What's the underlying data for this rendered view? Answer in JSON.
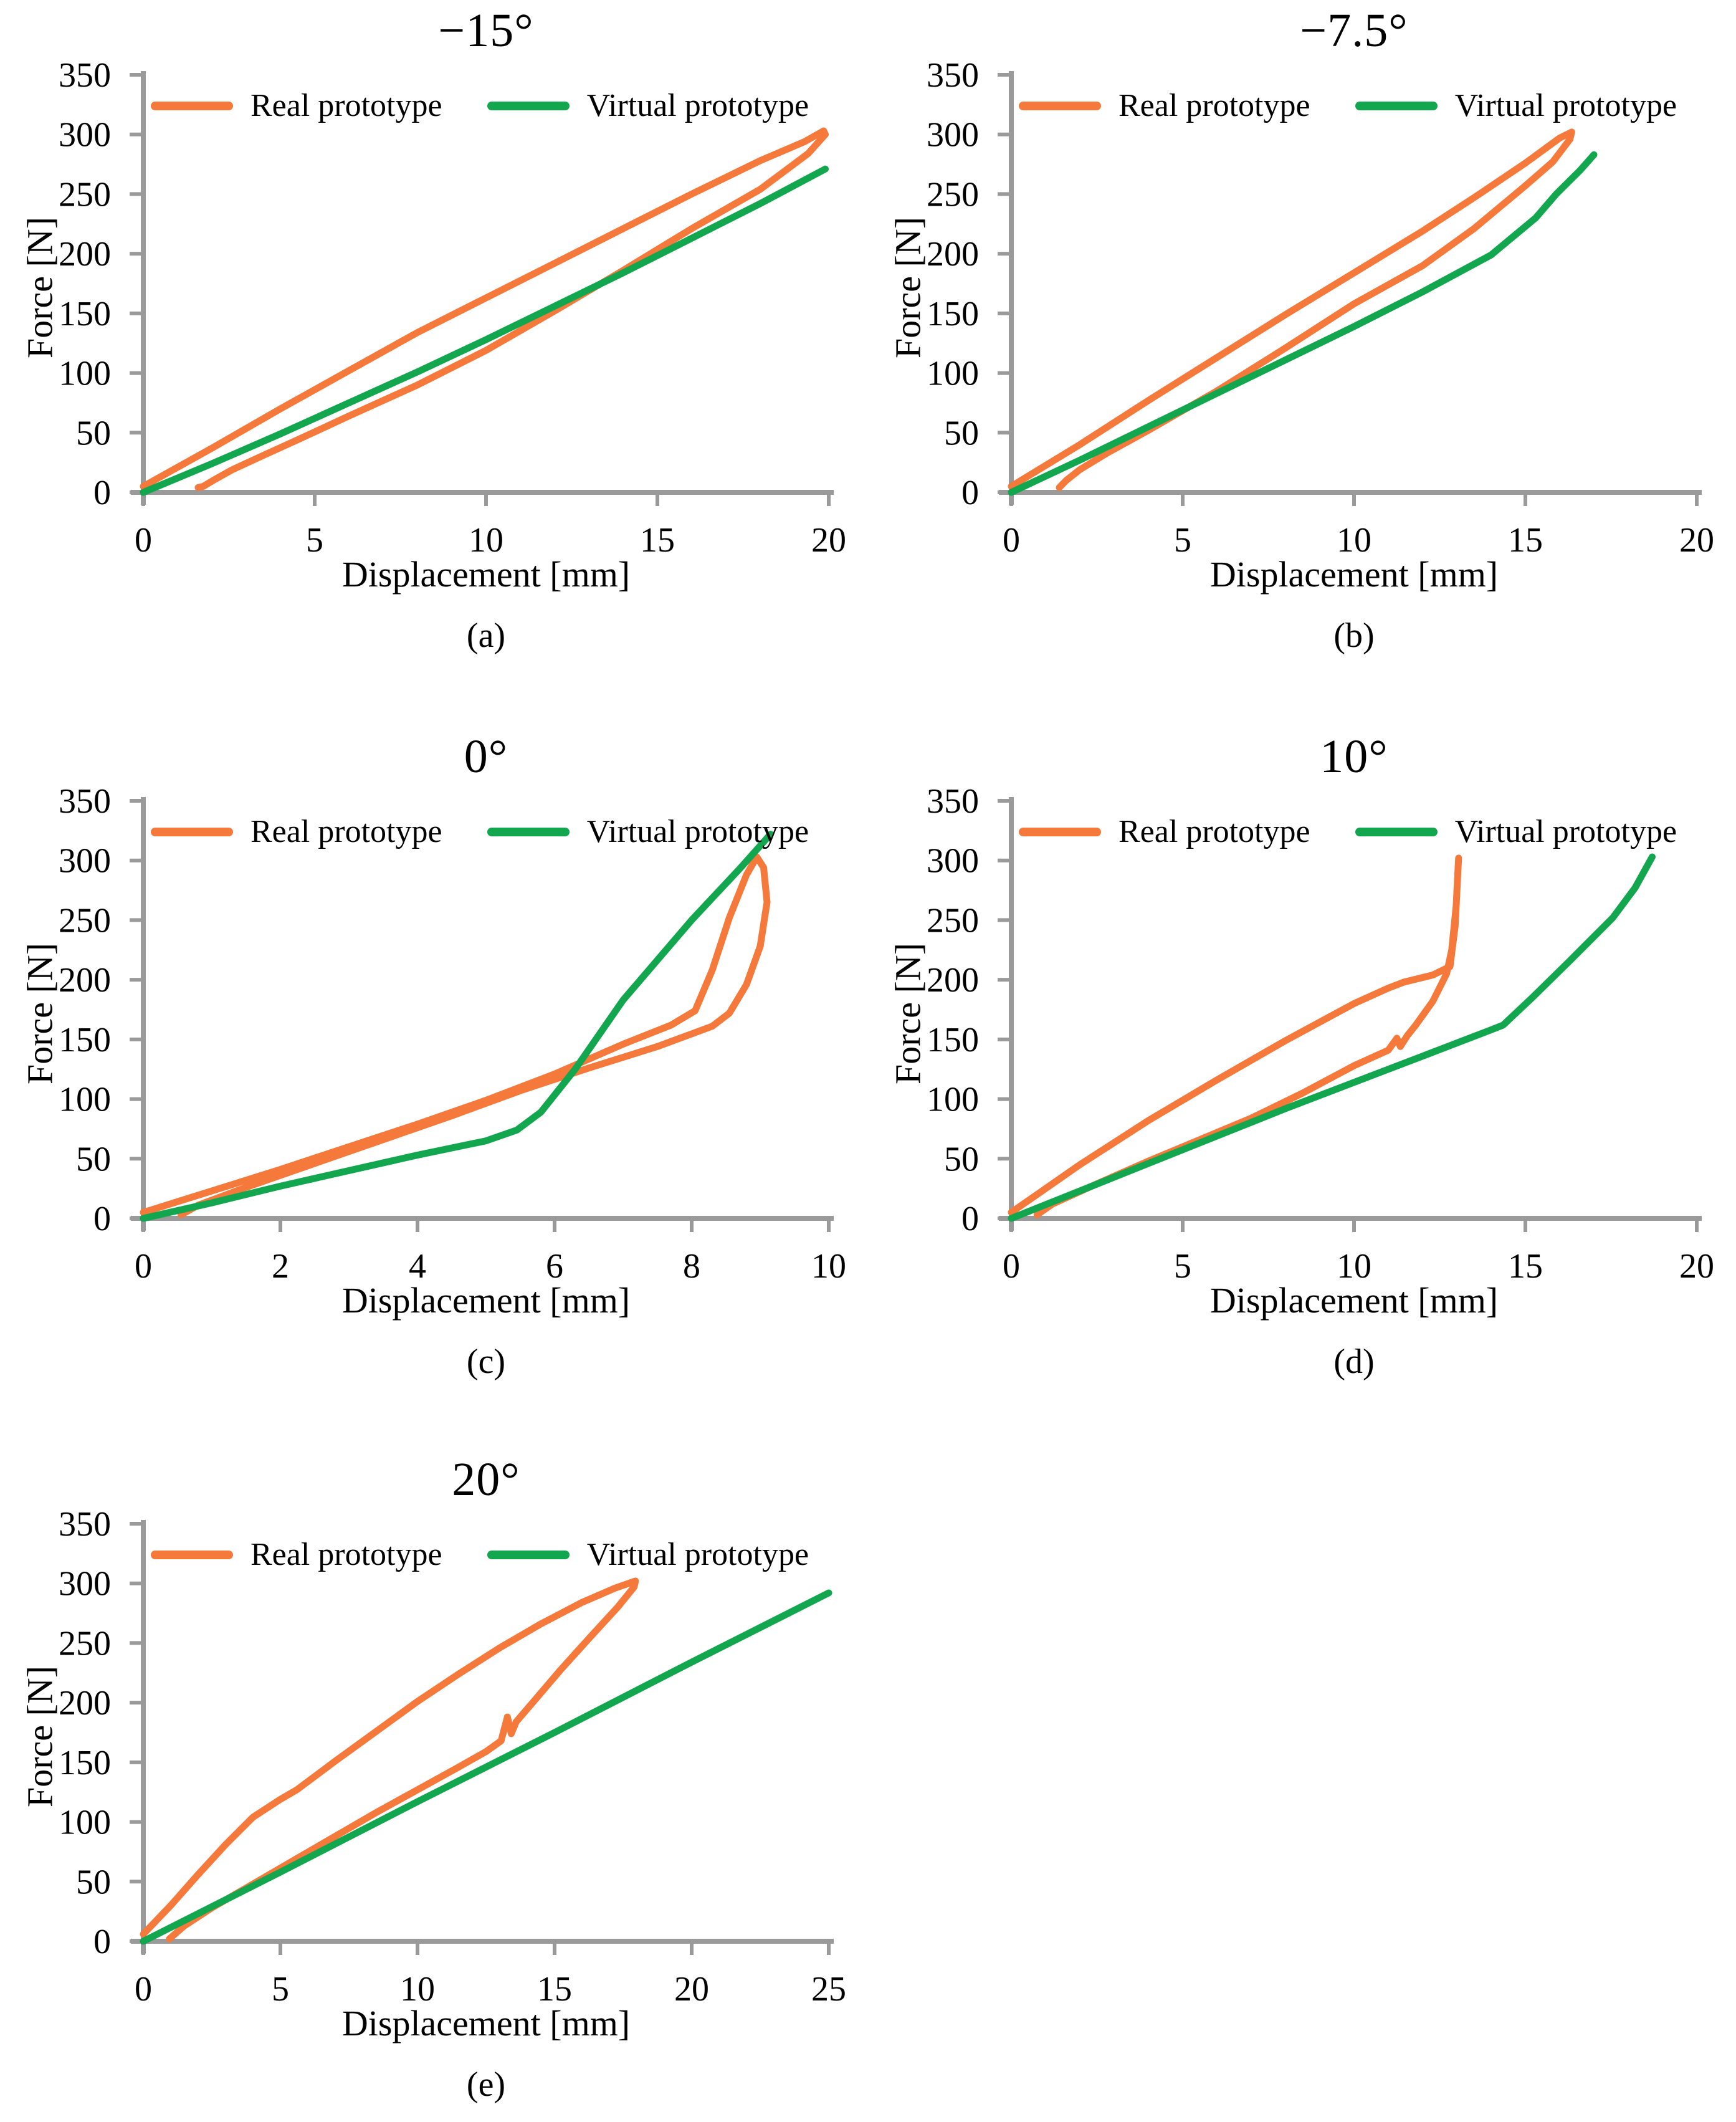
{
  "figure": {
    "background": "#FFFFFF",
    "axis_color": "#9A9A9A",
    "text_color": "#000000",
    "real_color": "#F4793B",
    "virtual_color": "#12A74E"
  },
  "chart_data": [
    {
      "id": "a",
      "type": "line",
      "title": "−15°",
      "caption": "(a)",
      "xlabel": "Displacement [mm]",
      "ylabel": "Force [N]",
      "xlim": [
        0,
        20
      ],
      "ylim": [
        0,
        350
      ],
      "x_ticks": [
        0,
        5,
        10,
        15,
        20
      ],
      "y_ticks": [
        0,
        50,
        100,
        150,
        200,
        250,
        300,
        350
      ],
      "grid": false,
      "legend_position": "top-inside",
      "series": [
        {
          "name": "Real prototype",
          "color": "#F4793B",
          "points": [
            [
              0,
              5
            ],
            [
              2,
              37
            ],
            [
              4,
              70
            ],
            [
              6,
              102
            ],
            [
              8,
              134
            ],
            [
              10,
              163
            ],
            [
              12,
              192
            ],
            [
              14,
              221
            ],
            [
              16,
              250
            ],
            [
              18,
              278
            ],
            [
              19.3,
              294
            ],
            [
              19.85,
              303
            ],
            [
              19.9,
              300
            ],
            [
              19.4,
              284
            ],
            [
              18,
              254
            ],
            [
              16,
              221
            ],
            [
              14,
              186
            ],
            [
              12,
              152
            ],
            [
              10,
              119
            ],
            [
              8,
              90
            ],
            [
              6,
              64
            ],
            [
              4.5,
              44
            ],
            [
              3.5,
              31
            ],
            [
              2.6,
              19
            ],
            [
              2.1,
              11
            ],
            [
              1.75,
              5
            ],
            [
              1.6,
              4
            ]
          ]
        },
        {
          "name": "Virtual prototype",
          "color": "#12A74E",
          "points": [
            [
              0,
              0
            ],
            [
              2,
              24
            ],
            [
              4,
              49
            ],
            [
              6,
              75
            ],
            [
              8,
              101
            ],
            [
              10,
              128
            ],
            [
              12,
              156
            ],
            [
              14,
              184
            ],
            [
              16,
              213
            ],
            [
              18,
              242
            ],
            [
              19.9,
              271
            ]
          ]
        }
      ]
    },
    {
      "id": "b",
      "type": "line",
      "title": "−7.5°",
      "caption": "(b)",
      "xlabel": "Displacement [mm]",
      "ylabel": "Force [N]",
      "xlim": [
        0,
        20
      ],
      "ylim": [
        0,
        350
      ],
      "x_ticks": [
        0,
        5,
        10,
        15,
        20
      ],
      "y_ticks": [
        0,
        50,
        100,
        150,
        200,
        250,
        300,
        350
      ],
      "grid": false,
      "legend_position": "top-inside",
      "series": [
        {
          "name": "Real prototype",
          "color": "#F4793B",
          "points": [
            [
              0,
              5
            ],
            [
              2,
              40
            ],
            [
              4,
              77
            ],
            [
              6,
              113
            ],
            [
              8,
              149
            ],
            [
              10,
              184
            ],
            [
              12,
              219
            ],
            [
              13.5,
              247
            ],
            [
              15,
              276
            ],
            [
              16,
              297
            ],
            [
              16.35,
              302
            ],
            [
              16.3,
              296
            ],
            [
              15.8,
              277
            ],
            [
              15,
              257
            ],
            [
              13.5,
              221
            ],
            [
              12,
              190
            ],
            [
              10,
              158
            ],
            [
              8,
              121
            ],
            [
              6,
              85
            ],
            [
              4,
              52
            ],
            [
              2.8,
              33
            ],
            [
              2,
              19
            ],
            [
              1.6,
              10
            ],
            [
              1.4,
              4
            ]
          ]
        },
        {
          "name": "Virtual prototype",
          "color": "#12A74E",
          "points": [
            [
              0,
              0
            ],
            [
              2,
              27
            ],
            [
              4,
              55
            ],
            [
              6,
              83
            ],
            [
              8,
              111
            ],
            [
              10,
              139
            ],
            [
              12,
              168
            ],
            [
              14,
              199
            ],
            [
              15.3,
              230
            ],
            [
              15.9,
              250
            ],
            [
              16.6,
              270
            ],
            [
              17,
              283
            ]
          ]
        }
      ]
    },
    {
      "id": "c",
      "type": "line",
      "title": "0°",
      "caption": "(c)",
      "xlabel": "Displacement [mm]",
      "ylabel": "Force [N]",
      "xlim": [
        0,
        10
      ],
      "ylim": [
        0,
        350
      ],
      "x_ticks": [
        0,
        2,
        4,
        6,
        8,
        10
      ],
      "y_ticks": [
        0,
        50,
        100,
        150,
        200,
        250,
        300,
        350
      ],
      "grid": false,
      "legend_position": "top-inside",
      "series": [
        {
          "name": "Real prototype",
          "color": "#F4793B",
          "points": [
            [
              0,
              5
            ],
            [
              1,
              23
            ],
            [
              2,
              41
            ],
            [
              3,
              60
            ],
            [
              4,
              79
            ],
            [
              5,
              99
            ],
            [
              6,
              121
            ],
            [
              7,
              146
            ],
            [
              7.7,
              162
            ],
            [
              8.05,
              174
            ],
            [
              8.3,
              208
            ],
            [
              8.55,
              252
            ],
            [
              8.8,
              288
            ],
            [
              8.95,
              303
            ],
            [
              9.05,
              294
            ],
            [
              9.1,
              265
            ],
            [
              9,
              228
            ],
            [
              8.8,
              196
            ],
            [
              8.55,
              172
            ],
            [
              8.3,
              161
            ],
            [
              7.5,
              144
            ],
            [
              6.5,
              126
            ],
            [
              5.5,
              107
            ],
            [
              4.5,
              86
            ],
            [
              3.5,
              66
            ],
            [
              2.5,
              46
            ],
            [
              1.5,
              26
            ],
            [
              0.8,
              11
            ],
            [
              0.55,
              3
            ]
          ]
        },
        {
          "name": "Virtual prototype",
          "color": "#12A74E",
          "points": [
            [
              0,
              0
            ],
            [
              1,
              13
            ],
            [
              2,
              27
            ],
            [
              3,
              40
            ],
            [
              4,
              53
            ],
            [
              5,
              65
            ],
            [
              5.45,
              74
            ],
            [
              5.8,
              89
            ],
            [
              6.3,
              125
            ],
            [
              7,
              183
            ],
            [
              8,
              250
            ],
            [
              8.7,
              293
            ],
            [
              9.15,
              322
            ]
          ]
        }
      ]
    },
    {
      "id": "d",
      "type": "line",
      "title": "10°",
      "caption": "(d)",
      "xlabel": "Displacement [mm]",
      "ylabel": "Force [N]",
      "xlim": [
        0,
        20
      ],
      "ylim": [
        0,
        350
      ],
      "x_ticks": [
        0,
        5,
        10,
        15,
        20
      ],
      "y_ticks": [
        0,
        50,
        100,
        150,
        200,
        250,
        300,
        350
      ],
      "grid": false,
      "legend_position": "top-inside",
      "series": [
        {
          "name": "Real prototype",
          "color": "#F4793B",
          "points": [
            [
              0,
              5
            ],
            [
              2,
              45
            ],
            [
              4,
              82
            ],
            [
              6,
              116
            ],
            [
              8,
              149
            ],
            [
              10,
              180
            ],
            [
              11,
              193
            ],
            [
              11.45,
              198
            ],
            [
              12.3,
              204
            ],
            [
              12.8,
              211
            ],
            [
              12.95,
              245
            ],
            [
              13.05,
              302
            ],
            [
              12.98,
              262
            ],
            [
              12.85,
              225
            ],
            [
              12.7,
              205
            ],
            [
              12.3,
              182
            ],
            [
              11.8,
              162
            ],
            [
              11.55,
              153
            ],
            [
              11.35,
              144
            ],
            [
              11.25,
              151
            ],
            [
              11,
              141
            ],
            [
              10,
              128
            ],
            [
              8.5,
              105
            ],
            [
              7,
              84
            ],
            [
              5.5,
              66
            ],
            [
              4,
              48
            ],
            [
              2.5,
              29
            ],
            [
              1.2,
              12
            ],
            [
              0.75,
              3
            ]
          ]
        },
        {
          "name": "Virtual prototype",
          "color": "#12A74E",
          "points": [
            [
              0,
              0
            ],
            [
              2,
              23
            ],
            [
              4,
              46
            ],
            [
              6,
              69
            ],
            [
              8,
              92
            ],
            [
              10,
              114
            ],
            [
              12,
              136
            ],
            [
              14,
              158
            ],
            [
              14.35,
              162
            ],
            [
              15.2,
              185
            ],
            [
              16.3,
              216
            ],
            [
              17.55,
              252
            ],
            [
              18.2,
              277
            ],
            [
              18.7,
              303
            ]
          ]
        }
      ]
    },
    {
      "id": "e",
      "type": "line",
      "title": "20°",
      "caption": "(e)",
      "xlabel": "Displacement [mm]",
      "ylabel": "Force [N]",
      "xlim": [
        0,
        25
      ],
      "ylim": [
        0,
        350
      ],
      "x_ticks": [
        0,
        5,
        10,
        15,
        20,
        25
      ],
      "y_ticks": [
        0,
        50,
        100,
        150,
        200,
        250,
        300,
        350
      ],
      "grid": false,
      "legend_position": "top-inside",
      "series": [
        {
          "name": "Real prototype",
          "color": "#F4793B",
          "points": [
            [
              0,
              6
            ],
            [
              1,
              30
            ],
            [
              2,
              56
            ],
            [
              3,
              81
            ],
            [
              4,
              104
            ],
            [
              5,
              119
            ],
            [
              5.6,
              127
            ],
            [
              7,
              151
            ],
            [
              8.5,
              176
            ],
            [
              10,
              201
            ],
            [
              11.5,
              224
            ],
            [
              13,
              246
            ],
            [
              14.5,
              266
            ],
            [
              16,
              284
            ],
            [
              17.2,
              296
            ],
            [
              17.95,
              302
            ],
            [
              17.9,
              297
            ],
            [
              17.3,
              280
            ],
            [
              16.3,
              255
            ],
            [
              15.2,
              227
            ],
            [
              14.2,
              200
            ],
            [
              13.6,
              184
            ],
            [
              13.42,
              174
            ],
            [
              13.28,
              188
            ],
            [
              13.05,
              168
            ],
            [
              12.5,
              159
            ],
            [
              11.5,
              146
            ],
            [
              10,
              127
            ],
            [
              8.5,
              108
            ],
            [
              7,
              88
            ],
            [
              5.5,
              68
            ],
            [
              4,
              48
            ],
            [
              2.5,
              28
            ],
            [
              1.5,
              13
            ],
            [
              1.1,
              5
            ],
            [
              0.95,
              2
            ]
          ]
        },
        {
          "name": "Virtual prototype",
          "color": "#12A74E",
          "points": [
            [
              0,
              0
            ],
            [
              5,
              58
            ],
            [
              10,
              117
            ],
            [
              15,
              175
            ],
            [
              20,
              234
            ],
            [
              25,
              292
            ]
          ]
        }
      ]
    }
  ]
}
